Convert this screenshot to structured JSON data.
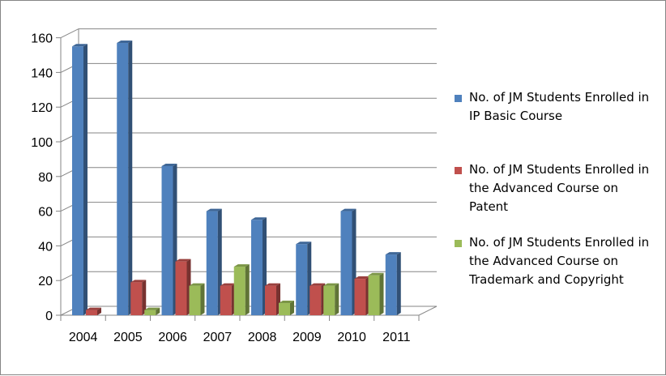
{
  "chart_data": {
    "type": "bar",
    "categories": [
      "2004",
      "2005",
      "2006",
      "2007",
      "2008",
      "2009",
      "2010",
      "2011"
    ],
    "series": [
      {
        "name": "No. of JM Students Enrolled in IP Basic Course",
        "color": "#4F81BD",
        "values": [
          155,
          157,
          86,
          60,
          55,
          41,
          60,
          35
        ]
      },
      {
        "name": "No. of JM Students Enrolled in the Advanced Course on Patent",
        "color": "#C0504D",
        "values": [
          3,
          19,
          31,
          17,
          17,
          17,
          21,
          null
        ]
      },
      {
        "name": "No. of JM Students Enrolled in the Advanced Course on Trademark and Copyright",
        "color": "#9BBB59",
        "values": [
          null,
          3,
          17,
          28,
          7,
          17,
          23,
          null
        ]
      }
    ],
    "ylim": [
      0,
      160
    ],
    "yticks": [
      "0",
      "20",
      "40",
      "60",
      "80",
      "100",
      "120",
      "140",
      "160"
    ],
    "grid": true,
    "legend": "right",
    "style": "3d-bar"
  }
}
